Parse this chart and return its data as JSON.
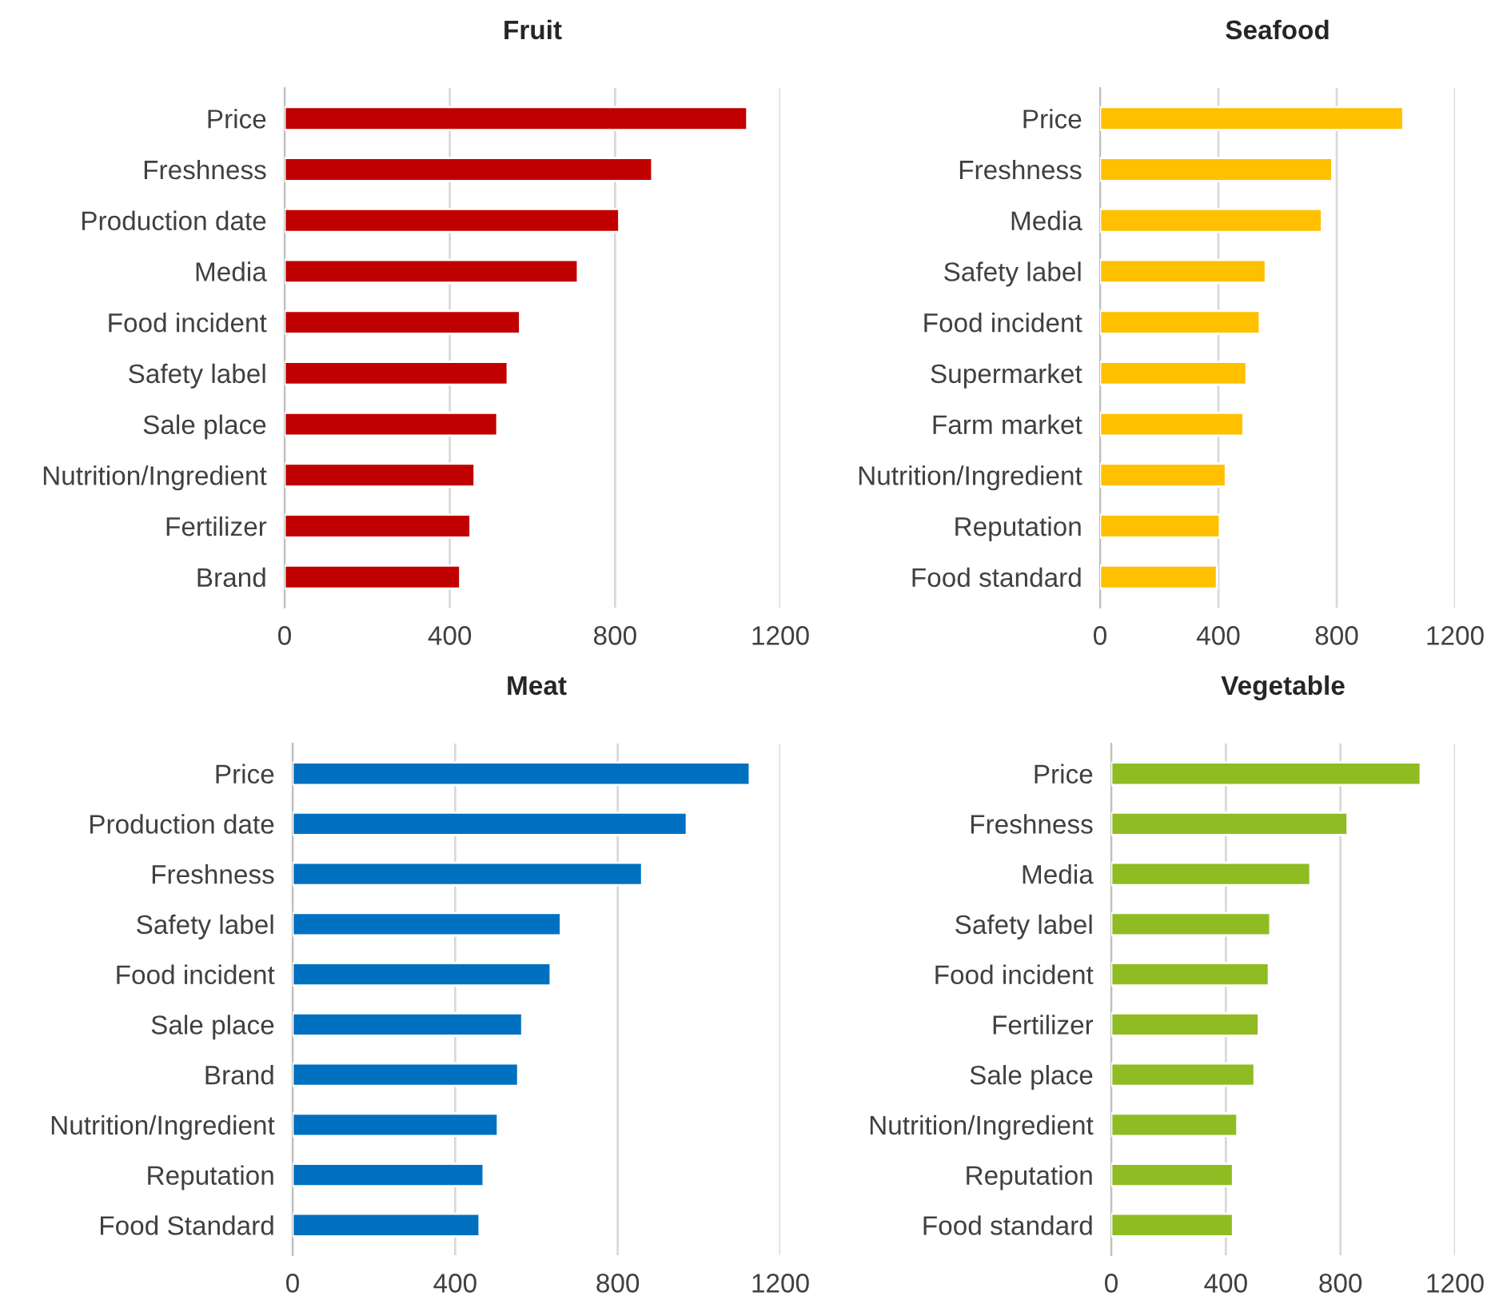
{
  "chart_data": [
    {
      "type": "bar",
      "orientation": "horizontal",
      "title": "Fruit",
      "categories": [
        "Price",
        "Freshness",
        "Production date",
        "Media",
        "Food incident",
        "Safety label",
        "Sale place",
        "Nutrition/Ingredient",
        "Fertilizer",
        "Brand"
      ],
      "values": [
        1120,
        890,
        810,
        710,
        570,
        540,
        515,
        460,
        450,
        425
      ],
      "color": "#c00000",
      "xlim": [
        0,
        1200
      ],
      "xticks": [
        0,
        400,
        800,
        1200
      ],
      "grid": "x"
    },
    {
      "type": "bar",
      "orientation": "horizontal",
      "title": "Seafood",
      "categories": [
        "Price",
        "Freshness",
        "Media",
        "Safety label",
        "Food incident",
        "Supermarket",
        "Farm market",
        "Nutrition/Ingredient",
        "Reputation",
        "Food standard"
      ],
      "values": [
        1025,
        785,
        750,
        560,
        540,
        495,
        485,
        425,
        405,
        395
      ],
      "color": "#ffc000",
      "xlim": [
        0,
        1200
      ],
      "xticks": [
        0,
        400,
        800,
        1200
      ],
      "grid": "x"
    },
    {
      "type": "bar",
      "orientation": "horizontal",
      "title": "Meat",
      "categories": [
        "Price",
        "Production date",
        "Freshness",
        "Safety label",
        "Food incident",
        "Sale place",
        "Brand",
        "Nutrition/Ingredient",
        "Reputation",
        "Food Standard"
      ],
      "values": [
        1125,
        970,
        860,
        660,
        635,
        565,
        555,
        505,
        470,
        460
      ],
      "color": "#0070c0",
      "xlim": [
        0,
        1200
      ],
      "xticks": [
        0,
        400,
        800,
        1200
      ],
      "grid": "x"
    },
    {
      "type": "bar",
      "orientation": "horizontal",
      "title": "Vegetable",
      "categories": [
        "Price",
        "Freshness",
        "Media",
        "Safety label",
        "Food incident",
        "Fertilizer",
        "Sale place",
        "Nutrition/Ingredient",
        "Reputation",
        "Food standard"
      ],
      "values": [
        1080,
        825,
        695,
        555,
        550,
        515,
        500,
        440,
        425,
        425
      ],
      "color": "#8fbc23",
      "xlim": [
        0,
        1200
      ],
      "xticks": [
        0,
        400,
        800,
        1200
      ],
      "grid": "x"
    }
  ]
}
